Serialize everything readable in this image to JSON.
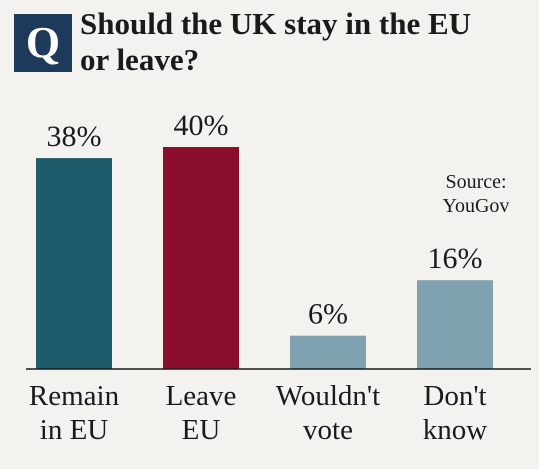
{
  "badge": "Q",
  "chart_data": {
    "type": "bar",
    "title_lines": [
      "Should the UK stay in the EU",
      "or leave?"
    ],
    "source_lines": [
      "Source:",
      "YouGov"
    ],
    "categories": [
      [
        "Remain",
        "in EU"
      ],
      [
        "Leave",
        "EU"
      ],
      [
        "Wouldn't",
        "vote"
      ],
      [
        "Don't",
        "know"
      ]
    ],
    "values": [
      38,
      40,
      6,
      16
    ],
    "value_labels": [
      "38%",
      "40%",
      "6%",
      "16%"
    ],
    "unit": "%",
    "ylim": [
      0,
      40
    ],
    "grid": false,
    "colors": [
      "#1e5b6b",
      "#8b0e2e",
      "#7fa1b0",
      "#7fa1b0"
    ]
  }
}
